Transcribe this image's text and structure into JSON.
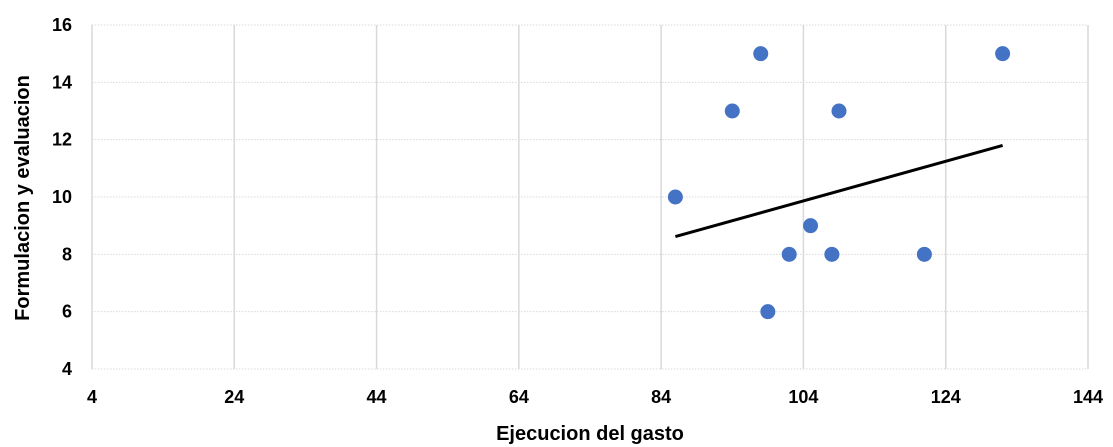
{
  "chart_data": {
    "type": "scatter",
    "title": "",
    "xlabel": "Ejecucion del gasto",
    "ylabel": "Formulacion y evaluacion",
    "xlim": [
      4,
      144
    ],
    "ylim": [
      4,
      16
    ],
    "xticks": [
      4,
      24,
      44,
      64,
      84,
      104,
      124,
      144
    ],
    "yticks": [
      4,
      6,
      8,
      10,
      12,
      14,
      16
    ],
    "grid": true,
    "legend": "none",
    "colors": {
      "points": "#4472C4",
      "trendline": "#000000",
      "grid": "#D9D9D9"
    },
    "series": [
      {
        "points": [
          {
            "x": 86,
            "y": 10
          },
          {
            "x": 94,
            "y": 13
          },
          {
            "x": 98,
            "y": 15
          },
          {
            "x": 99,
            "y": 6
          },
          {
            "x": 102,
            "y": 8
          },
          {
            "x": 105,
            "y": 9
          },
          {
            "x": 108,
            "y": 8
          },
          {
            "x": 109,
            "y": 13
          },
          {
            "x": 121,
            "y": 8
          },
          {
            "x": 132,
            "y": 15
          }
        ]
      }
    ],
    "trendline": {
      "x": [
        86,
        132
      ],
      "y": [
        8.62,
        11.8
      ]
    }
  }
}
